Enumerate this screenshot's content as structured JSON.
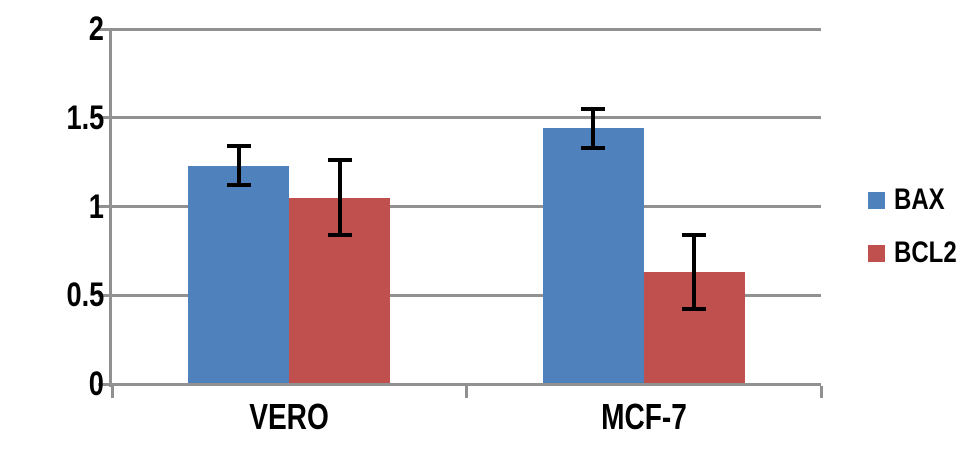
{
  "chart_data": {
    "type": "bar",
    "categories": [
      "VERO",
      "MCF-7"
    ],
    "series": [
      {
        "name": "BAX",
        "color": "#4F81BD",
        "values": [
          1.23,
          1.44
        ],
        "errors": [
          0.11,
          0.11
        ]
      },
      {
        "name": "BCL2",
        "color": "#C0504D",
        "values": [
          1.05,
          0.63
        ],
        "errors": [
          0.21,
          0.21
        ]
      }
    ],
    "xlabel": "",
    "ylabel": "",
    "title": "",
    "ylim": [
      0,
      2
    ],
    "y_tick_values": [
      0,
      0.5,
      1,
      1.5,
      2
    ],
    "y_tick_labels": [
      "0",
      "0.5",
      "1",
      "1.5",
      "2"
    ],
    "grid": true,
    "legend_position": "right",
    "colors": {
      "axis": "#919191",
      "gridline": "#919191",
      "error_bar": "#000000",
      "text": "#000000",
      "background": "#ffffff"
    }
  }
}
